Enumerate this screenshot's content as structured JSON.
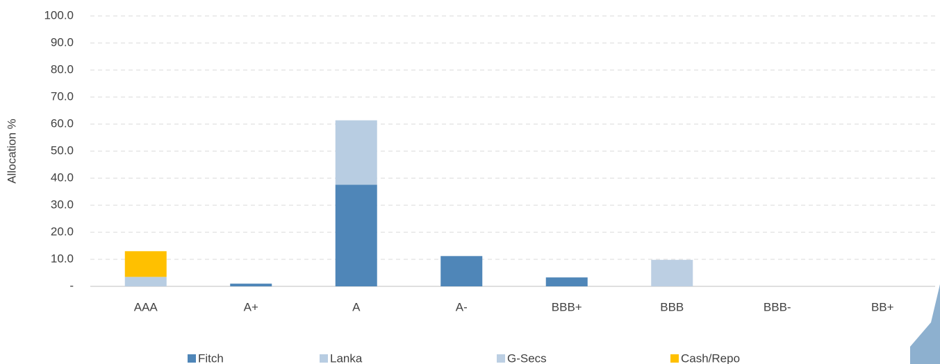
{
  "chart_data": {
    "type": "stacked_bar",
    "y_axis_label": "Allocation %",
    "categories": [
      "AAA",
      "A+",
      "A",
      "A-",
      "BBB+",
      "BBB",
      "BBB-",
      "BB+"
    ],
    "series": [
      {
        "name": "Fitch",
        "color": "#4f86b8",
        "values": [
          0,
          1.0,
          37.6,
          11.2,
          3.3,
          0,
          0,
          0
        ]
      },
      {
        "name": "Lanka",
        "color": "#b8cde2",
        "values": [
          3.5,
          0,
          23.8,
          0,
          0,
          0,
          0,
          0
        ]
      },
      {
        "name": "G-Secs",
        "color": "#bccfe3",
        "values": [
          0,
          0,
          0,
          0,
          0,
          9.8,
          0,
          0
        ]
      },
      {
        "name": "Cash/Repo",
        "color": "#ffc000",
        "values": [
          9.5,
          0,
          0,
          0,
          0,
          0,
          0,
          0
        ]
      }
    ],
    "ylim": [
      0,
      100
    ],
    "yticks": [
      {
        "value": 0,
        "label": "-"
      },
      {
        "value": 10,
        "label": "10.0"
      },
      {
        "value": 20,
        "label": "20.0"
      },
      {
        "value": 30,
        "label": "30.0"
      },
      {
        "value": 40,
        "label": "40.0"
      },
      {
        "value": 50,
        "label": "50.0"
      },
      {
        "value": 60,
        "label": "60.0"
      },
      {
        "value": 70,
        "label": "70.0"
      },
      {
        "value": 80,
        "label": "80.0"
      },
      {
        "value": 90,
        "label": "90.0"
      },
      {
        "value": 100,
        "label": "100.0"
      }
    ],
    "grid": true,
    "legend": "bottom"
  }
}
